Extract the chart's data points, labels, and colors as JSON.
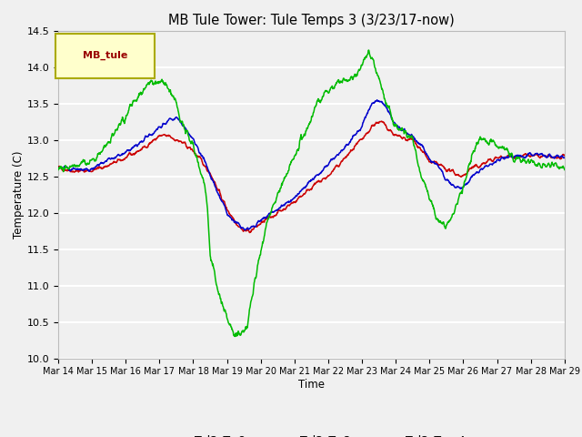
{
  "title": "MB Tule Tower: Tule Temps 3 (3/23/17-now)",
  "xlabel": "Time",
  "ylabel": "Temperature (C)",
  "ylim": [
    10.0,
    14.5
  ],
  "yticks": [
    10.0,
    10.5,
    11.0,
    11.5,
    12.0,
    12.5,
    13.0,
    13.5,
    14.0,
    14.5
  ],
  "x_tick_labels": [
    "Mar 14",
    "Mar 15",
    "Mar 16",
    "Mar 17",
    "Mar 18",
    "Mar 19",
    "Mar 20",
    "Mar 21",
    "Mar 22",
    "Mar 23",
    "Mar 24",
    "Mar 25",
    "Mar 26",
    "Mar 27",
    "Mar 28",
    "Mar 29"
  ],
  "bg_color": "#f0f0f0",
  "plot_bg_color": "#f0f0f0",
  "line_colors": {
    "Tul3_Ts-8": "#cc0000",
    "Tul3_Ts-2": "#0000cc",
    "Tul3_Tw+4": "#00bb00"
  },
  "legend_label": "MB_tule",
  "legend_box_color": "#ffffcc",
  "legend_box_edge": "#aaaa00"
}
